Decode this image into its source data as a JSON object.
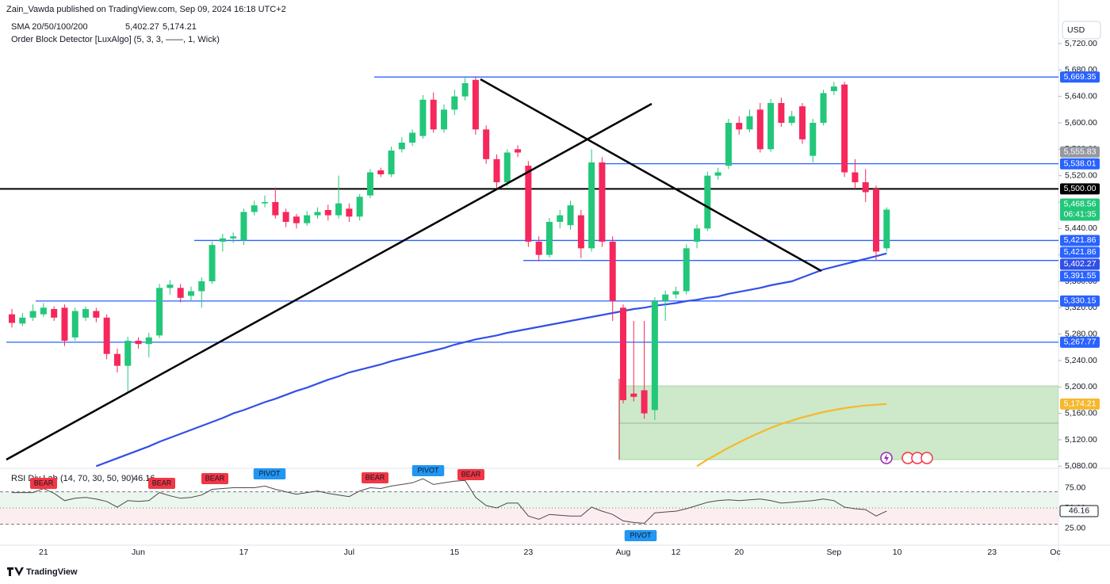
{
  "header": {
    "publisher": "Zain_Vawda published on TradingView.com, Sep 09, 2024 16:18 UTC+2",
    "logo": "TradingView",
    "currency": "USD"
  },
  "chart_data": [
    {
      "type": "candlestick",
      "title": "SMA 20/50/100/200",
      "indicator": "Order Block Detector [LuxAlgo] (5, 3, 3, ——, 1, Wick)",
      "up_color": "#22c77a",
      "down_color": "#f5275b",
      "categories": [
        null,
        null,
        null,
        "21",
        null,
        null,
        null,
        null,
        null,
        null,
        null,
        null,
        "Jun",
        null,
        null,
        null,
        null,
        null,
        null,
        null,
        null,
        null,
        "17",
        null,
        null,
        null,
        null,
        null,
        null,
        null,
        null,
        null,
        "Jul",
        null,
        null,
        null,
        null,
        null,
        null,
        null,
        null,
        null,
        "15",
        null,
        null,
        null,
        null,
        null,
        null,
        "23",
        null,
        null,
        null,
        null,
        null,
        null,
        null,
        null,
        "Aug",
        null,
        null,
        null,
        null,
        "12",
        null,
        null,
        null,
        null,
        null,
        "20",
        null,
        null,
        null,
        null,
        null,
        null,
        null,
        null,
        "Sep",
        null,
        null,
        null,
        null,
        null,
        "10",
        null,
        null,
        null,
        null,
        null,
        null,
        null,
        null,
        "23",
        null,
        null,
        null,
        null,
        null,
        "Oc"
      ],
      "open": [
        5310,
        5296,
        5305,
        5310,
        5318,
        5320,
        5275,
        5305,
        5315,
        5305,
        5250,
        5232,
        5270,
        5265,
        5278,
        5350,
        5350,
        5338,
        5345,
        5360,
        5420,
        5425,
        5422,
        5465,
        5478,
        5480,
        5465,
        5458,
        5448,
        5460,
        5468,
        5460,
        5470,
        5458,
        5490,
        5528,
        5522,
        5560,
        5570,
        5580,
        5635,
        5590,
        5620,
        5640,
        5665,
        5590,
        5545,
        5510,
        5560,
        5535,
        5420,
        5400,
        5450,
        5445,
        5460,
        5410,
        5540,
        5420,
        5320,
        5190,
        5195,
        5165,
        5330,
        5340,
        5345,
        5420,
        5440,
        5520,
        5535,
        5600,
        5590,
        5620,
        5560,
        5630,
        5600,
        5625,
        5550,
        5600,
        5648,
        5658,
        5525,
        5510,
        5500,
        5410,
        null,
        null,
        null,
        null,
        null,
        null,
        null,
        null,
        null,
        null,
        null,
        null,
        null,
        null,
        null,
        null
      ],
      "high": [
        5318,
        5312,
        5325,
        5327,
        5322,
        5325,
        5320,
        5322,
        5320,
        5310,
        5258,
        5276,
        5275,
        5282,
        5356,
        5362,
        5356,
        5352,
        5366,
        5420,
        5432,
        5434,
        5470,
        5482,
        5490,
        5502,
        5470,
        5462,
        5466,
        5472,
        5476,
        5520,
        5478,
        5492,
        5530,
        5532,
        5564,
        5578,
        5590,
        5642,
        5646,
        5628,
        5650,
        5668,
        5669.35,
        5596,
        5552,
        5560,
        5566,
        5542,
        5428,
        5456,
        5468,
        5482,
        5468,
        5560,
        5548,
        5428,
        5325,
        5300,
        5300,
        5336,
        5346,
        5352,
        5416,
        5446,
        5526,
        5532,
        5606,
        5610,
        5620,
        5630,
        5636,
        5638,
        5618,
        5630,
        5606,
        5650,
        5662,
        5662,
        5545,
        5530,
        5505,
        5472,
        null,
        null,
        null,
        null,
        null,
        null,
        null,
        null,
        null,
        null,
        null,
        null,
        null,
        null,
        null,
        null
      ],
      "low": [
        5290,
        5292,
        5300,
        5306,
        5300,
        5262,
        5270,
        5300,
        5298,
        5242,
        5222,
        5192,
        5258,
        5245,
        5274,
        5340,
        5328,
        5330,
        5320,
        5356,
        5405,
        5418,
        5415,
        5460,
        5472,
        5455,
        5442,
        5440,
        5444,
        5455,
        5452,
        5455,
        5450,
        5452,
        5486,
        5518,
        5518,
        5555,
        5565,
        5576,
        5585,
        5585,
        5612,
        5634,
        5582,
        5538,
        5500,
        5504,
        5548,
        5412,
        5390,
        5396,
        5440,
        5438,
        5395,
        5405,
        5412,
        5300,
        5175,
        5178,
        5152,
        5150,
        5300,
        5334,
        5340,
        5410,
        5436,
        5514,
        5530,
        5582,
        5586,
        5555,
        5556,
        5594,
        5596,
        5568,
        5540,
        5596,
        5642,
        5518,
        5500,
        5480,
        5391.55,
        5405,
        null,
        null,
        null,
        null,
        null,
        null,
        null,
        null,
        null,
        null,
        null,
        null,
        null,
        null,
        null,
        null
      ],
      "close": [
        5297,
        5305,
        5315,
        5320,
        5305,
        5270,
        5315,
        5318,
        5305,
        5250,
        5232,
        5270,
        5265,
        5275,
        5350,
        5355,
        5335,
        5345,
        5360,
        5415,
        5425,
        5428,
        5465,
        5475,
        5480,
        5460,
        5450,
        5448,
        5460,
        5465,
        5460,
        5478,
        5458,
        5488,
        5525,
        5522,
        5558,
        5570,
        5585,
        5635,
        5590,
        5620,
        5640,
        5660,
        5590,
        5545,
        5510,
        5555,
        5555,
        5420,
        5400,
        5450,
        5460,
        5475,
        5410,
        5540,
        5420,
        5330,
        5180,
        5185,
        5160,
        5330,
        5340,
        5345,
        5410,
        5440,
        5520,
        5525,
        5600,
        5590,
        5610,
        5560,
        5630,
        5600,
        5610,
        5575,
        5600,
        5645,
        5655,
        5525,
        5510,
        5495,
        5405,
        5468.56,
        null,
        null,
        null,
        null,
        null,
        null,
        null,
        null,
        null,
        null,
        null,
        null,
        null,
        null,
        null,
        null
      ],
      "overlays": [
        {
          "label": "5,402.27",
          "color": "#3250e6",
          "values": [
            null,
            null,
            null,
            null,
            null,
            null,
            null,
            null,
            5080,
            5086,
            5092,
            5098,
            5104,
            5110,
            5117,
            5123,
            5129,
            5135,
            5141,
            5147,
            5153,
            5160,
            5165,
            5171,
            5177,
            5182,
            5188,
            5194,
            5199,
            5205,
            5211,
            5216,
            5222,
            5226,
            5230,
            5234,
            5239,
            5243,
            5247,
            5251,
            5255,
            5259,
            5264,
            5268,
            5272,
            5275,
            5278,
            5282,
            5285,
            5288,
            5291,
            5294,
            5297,
            5300,
            5303,
            5306,
            5309,
            5312,
            5315,
            5318,
            5320,
            5323,
            5325,
            5327,
            5330,
            5332,
            5335,
            5337,
            5341,
            5344,
            5347,
            5350,
            5354,
            5357,
            5360,
            5366,
            5372,
            5378,
            5382,
            5386,
            5390,
            5394,
            5398,
            5402.27,
            null,
            null,
            null,
            null,
            null,
            null,
            null,
            null,
            null,
            null,
            null,
            null,
            null,
            null,
            null,
            null
          ]
        },
        {
          "label": "5,174.21",
          "color": "#f5b82e",
          "values": [
            null,
            null,
            null,
            null,
            null,
            null,
            null,
            null,
            null,
            null,
            null,
            null,
            null,
            null,
            null,
            null,
            null,
            null,
            null,
            null,
            null,
            null,
            null,
            null,
            null,
            null,
            null,
            null,
            null,
            null,
            null,
            null,
            null,
            null,
            null,
            null,
            null,
            null,
            null,
            null,
            null,
            null,
            null,
            null,
            null,
            null,
            null,
            null,
            null,
            null,
            null,
            null,
            null,
            null,
            null,
            null,
            null,
            null,
            null,
            null,
            null,
            null,
            null,
            null,
            null,
            5080,
            5090,
            5099,
            5108,
            5116,
            5124,
            5131,
            5138,
            5144,
            5149,
            5154,
            5158,
            5162,
            5165,
            5168,
            5170,
            5172,
            5173,
            5174.21,
            null,
            null,
            null,
            null,
            null,
            null,
            null,
            null,
            null,
            null,
            null,
            null,
            null,
            null,
            null,
            null
          ]
        }
      ],
      "levels": [
        {
          "value": 5669.35,
          "label": "5,669.35",
          "color": "#2962ff"
        },
        {
          "value": 5555.83,
          "label": "5,555.83",
          "color": "#9598a1"
        },
        {
          "value": 5538.01,
          "label": "5,538.01",
          "color": "#2962ff"
        },
        {
          "value": 5500,
          "label": "5,500.00",
          "color": "#000000"
        },
        {
          "value": 5421.86,
          "label": "5,421.86",
          "color": "#2962ff"
        },
        {
          "value": 5421.86,
          "label": "5,421.86",
          "color": "#2962ff"
        },
        {
          "value": 5391.55,
          "label": "5,391.55",
          "color": "#2962ff"
        },
        {
          "value": 5330.15,
          "label": "5,330.15",
          "color": "#2962ff"
        },
        {
          "value": 5267.77,
          "label": "5,267.77",
          "color": "#2962ff"
        }
      ],
      "last_price": {
        "value": 5468.56,
        "label": "5,468.56",
        "countdown": "06:41:35",
        "color": "#22c77a"
      },
      "ylim": [
        5078,
        5750
      ],
      "yticks": [
        {
          "value": 5080,
          "label": "5,080.00"
        },
        {
          "value": 5120,
          "label": "5,120.00"
        },
        {
          "value": 5160,
          "label": "5,160.00"
        },
        {
          "value": 5200,
          "label": "5,200.00"
        },
        {
          "value": 5240,
          "label": "5,240.00"
        },
        {
          "value": 5280,
          "label": "5,280.00"
        },
        {
          "value": 5320,
          "label": "5,320.00"
        },
        {
          "value": 5360,
          "label": "5,360.00"
        },
        {
          "value": 5400,
          "label": "5,400.00"
        },
        {
          "value": 5440,
          "label": "5,440.00"
        },
        {
          "value": 5480,
          "label": "5,480.00"
        },
        {
          "value": 5520,
          "label": "5,520.00"
        },
        {
          "value": 5560,
          "label": "5,560.00"
        },
        {
          "value": 5600,
          "label": "5,600.00"
        },
        {
          "value": 5640,
          "label": "5,640.00"
        },
        {
          "value": 5680,
          "label": "5,680.00"
        },
        {
          "value": 5720,
          "label": "5,720.00"
        }
      ]
    },
    {
      "type": "line",
      "title": "RSI Div Lab",
      "params": "(14, 70, 30, 50, 90)",
      "color": "#4a4a4a",
      "values": [
        69,
        69,
        69,
        74,
        68,
        59,
        62,
        63,
        61,
        58,
        51,
        59,
        58,
        59,
        69,
        65,
        62,
        63,
        66,
        73,
        74,
        75,
        75,
        75,
        77,
        73,
        70,
        67,
        69,
        71,
        68,
        66,
        64,
        71,
        75,
        74,
        77,
        79,
        81,
        86,
        79,
        81,
        83,
        84,
        63,
        53,
        50,
        56,
        56,
        40,
        36,
        42,
        41,
        40,
        40,
        51,
        46,
        42,
        34,
        32,
        31,
        44,
        45,
        46,
        49,
        53,
        57,
        59,
        60,
        59,
        60,
        61,
        59,
        56,
        57,
        58,
        59,
        61,
        59,
        51,
        49,
        48,
        40,
        46.16,
        null,
        null,
        null,
        null,
        null,
        null,
        null,
        null,
        null,
        null,
        null,
        null,
        null,
        null,
        null,
        null
      ],
      "levels": [
        70,
        50,
        30
      ],
      "ylim": [
        5,
        97
      ],
      "yticks": [
        {
          "value": 25,
          "label": "25.00"
        },
        {
          "value": 50,
          "label": "50.00"
        },
        {
          "value": 75,
          "label": "75.00"
        }
      ],
      "signals": [
        {
          "label": "BEAR",
          "color": "#f23645"
        },
        {
          "label": "BEAR",
          "color": "#f23645"
        },
        {
          "label": "BEAR",
          "color": "#f23645"
        },
        {
          "label": "PIVOT",
          "color": "#2196f3"
        },
        {
          "label": "BEAR",
          "color": "#f23645"
        },
        {
          "label": "PIVOT",
          "color": "#2196f3"
        },
        {
          "label": "BEAR",
          "color": "#f23645"
        },
        {
          "label": "PIVOT",
          "color": "#2196f3"
        }
      ]
    }
  ]
}
